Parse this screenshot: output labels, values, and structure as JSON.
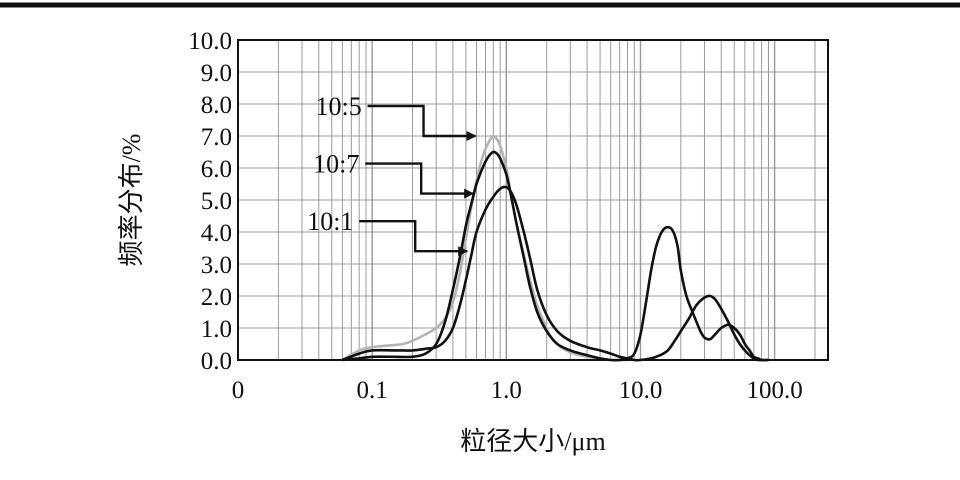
{
  "chart_data": {
    "type": "line",
    "xscale": "log",
    "xlabel": "粒径大小/μm",
    "ylabel": "频率分布/%",
    "xlim": [
      0.01,
      250
    ],
    "ylim": [
      0,
      10
    ],
    "grid": true,
    "x_tick_labels": [
      {
        "x": 0.01,
        "label": "0"
      },
      {
        "x": 0.1,
        "label": "0.1"
      },
      {
        "x": 1,
        "label": "1.0"
      },
      {
        "x": 10,
        "label": "10.0"
      },
      {
        "x": 100,
        "label": "100.0"
      }
    ],
    "y_tick_labels": [
      "0.0",
      "1.0",
      "2.0",
      "3.0",
      "4.0",
      "5.0",
      "6.0",
      "7.0",
      "8.0",
      "9.0",
      "10.0"
    ],
    "series": [
      {
        "name": "10:5",
        "color": "#b4b4b4",
        "x": [
          0.06,
          0.08,
          0.1,
          0.13,
          0.17,
          0.2,
          0.25,
          0.3,
          0.35,
          0.4,
          0.45,
          0.5,
          0.55,
          0.6,
          0.65,
          0.7,
          0.75,
          0.8,
          0.85,
          0.9,
          1.0,
          1.1,
          1.2,
          1.35,
          1.5,
          1.7,
          1.9,
          2.1,
          2.4,
          2.8,
          3.2,
          4.0,
          5.0,
          6.0,
          7.0,
          8.0,
          8.5
        ],
        "y": [
          0.0,
          0.3,
          0.4,
          0.45,
          0.5,
          0.6,
          0.8,
          1.0,
          1.3,
          1.8,
          2.7,
          3.8,
          4.8,
          5.6,
          6.2,
          6.6,
          6.85,
          7.0,
          6.9,
          6.7,
          6.0,
          5.0,
          4.2,
          3.3,
          2.5,
          1.7,
          1.2,
          0.8,
          0.5,
          0.3,
          0.2,
          0.1,
          0.05,
          0.0,
          0.0,
          0.0,
          0.0
        ]
      },
      {
        "name": "10:7",
        "color": "#111111",
        "x": [
          0.06,
          0.08,
          0.1,
          0.15,
          0.2,
          0.25,
          0.3,
          0.35,
          0.4,
          0.45,
          0.5,
          0.55,
          0.6,
          0.65,
          0.7,
          0.75,
          0.8,
          0.85,
          0.9,
          1.0,
          1.1,
          1.2,
          1.35,
          1.5,
          1.7,
          2.0,
          2.4,
          3.0,
          4.0,
          5.0,
          6.0,
          7.0,
          8.0,
          9.0,
          10.0,
          11.0,
          12.0,
          13.0,
          14.0,
          15.0,
          16.0,
          17.0,
          18.0,
          19.0,
          20.0,
          22.0,
          25.0,
          28.0,
          30.0,
          33.0,
          36.0,
          40.0,
          45.0,
          50.0,
          55.0,
          60.0,
          65.0,
          70.0,
          75.0,
          80.0,
          90.0
        ],
        "y": [
          0.0,
          0.05,
          0.1,
          0.1,
          0.1,
          0.2,
          0.5,
          1.2,
          2.2,
          3.2,
          4.2,
          4.9,
          5.5,
          5.9,
          6.2,
          6.4,
          6.5,
          6.45,
          6.3,
          5.8,
          5.0,
          4.2,
          3.2,
          2.3,
          1.5,
          0.9,
          0.5,
          0.3,
          0.15,
          0.05,
          0.0,
          0.0,
          0.05,
          0.2,
          0.8,
          1.8,
          2.8,
          3.5,
          3.9,
          4.1,
          4.15,
          4.1,
          3.9,
          3.5,
          2.8,
          2.0,
          1.4,
          0.9,
          0.7,
          0.65,
          0.8,
          1.0,
          1.1,
          1.0,
          0.8,
          0.5,
          0.3,
          0.1,
          0.05,
          0.0,
          0.0
        ]
      },
      {
        "name": "10:1",
        "color": "#111111",
        "x": [
          0.06,
          0.08,
          0.1,
          0.15,
          0.2,
          0.25,
          0.3,
          0.35,
          0.4,
          0.45,
          0.5,
          0.55,
          0.6,
          0.7,
          0.8,
          0.9,
          1.0,
          1.1,
          1.2,
          1.35,
          1.5,
          1.7,
          2.0,
          2.4,
          3.0,
          4.0,
          5.0,
          6.0,
          7.0,
          8.0,
          9.0,
          10.0,
          12.0,
          14.0,
          16.0,
          18.0,
          20.0,
          23.0,
          26.0,
          30.0,
          33.0,
          36.0,
          40.0,
          45.0,
          50.0,
          55.0,
          60.0,
          65.0,
          70.0,
          75.0,
          80.0,
          90.0
        ],
        "y": [
          0.0,
          0.2,
          0.3,
          0.3,
          0.3,
          0.35,
          0.4,
          0.6,
          1.0,
          1.7,
          2.5,
          3.3,
          4.0,
          4.7,
          5.1,
          5.35,
          5.4,
          5.2,
          4.8,
          4.0,
          3.2,
          2.2,
          1.4,
          0.9,
          0.6,
          0.4,
          0.3,
          0.2,
          0.1,
          0.05,
          0.0,
          0.0,
          0.05,
          0.15,
          0.3,
          0.6,
          0.9,
          1.3,
          1.7,
          1.95,
          2.0,
          1.9,
          1.6,
          1.2,
          0.8,
          0.5,
          0.3,
          0.15,
          0.05,
          0.0,
          0.0,
          0.0
        ]
      }
    ],
    "annotations": [
      {
        "label": "10:5",
        "series": "10:5",
        "point": [
          0.75,
          7.0
        ]
      },
      {
        "label": "10:7",
        "series": "10:7",
        "point": [
          0.72,
          5.2
        ]
      },
      {
        "label": "10:1",
        "series": "10:1",
        "point": [
          0.65,
          3.4
        ]
      }
    ]
  }
}
